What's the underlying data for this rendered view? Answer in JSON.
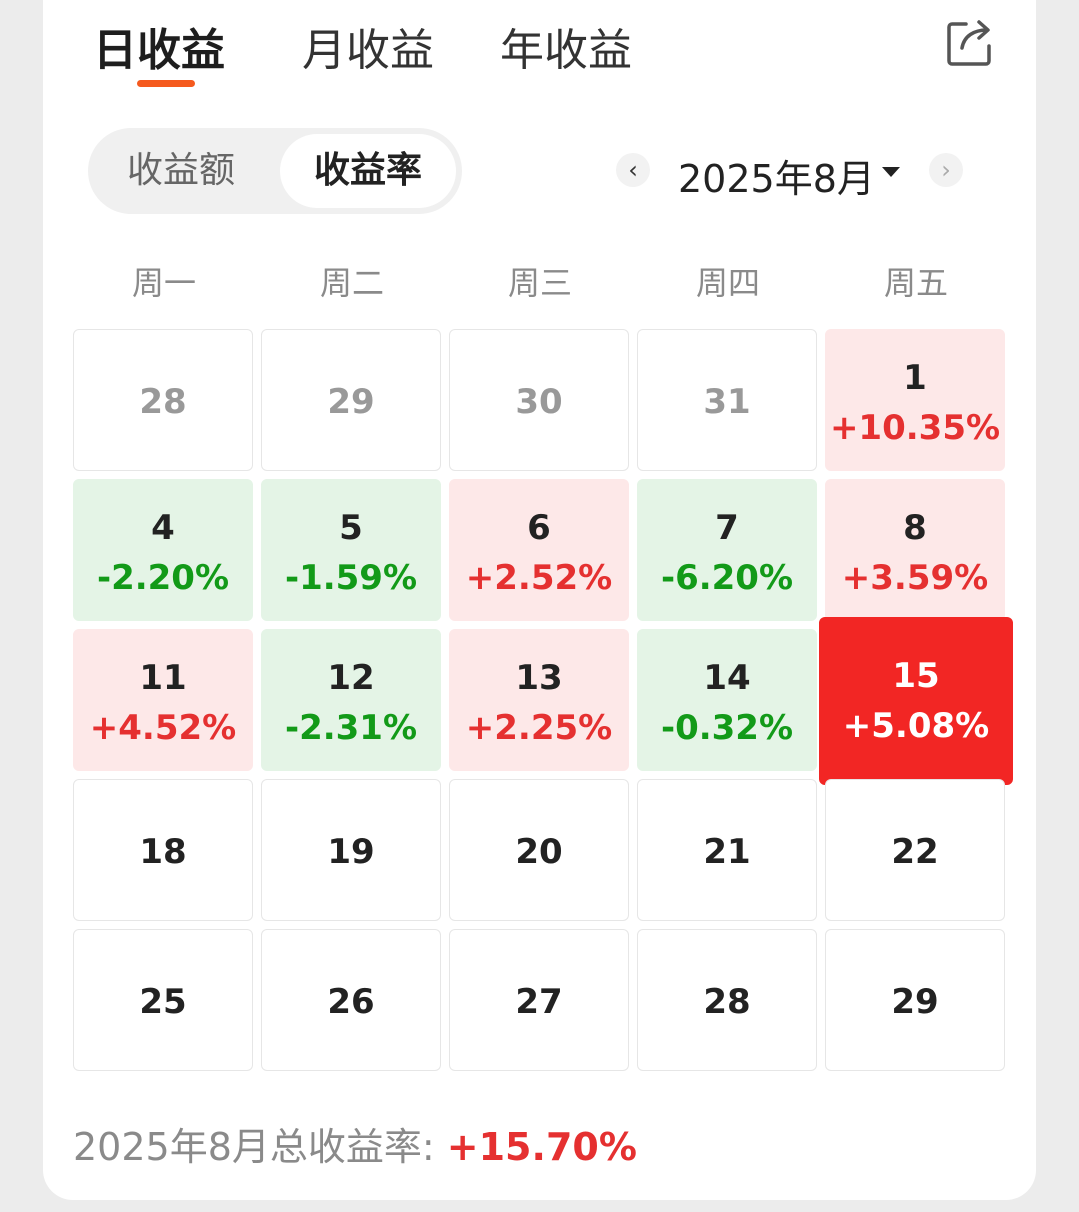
{
  "tabs": [
    {
      "label": "日收益",
      "active": true
    },
    {
      "label": "月收益",
      "active": false
    },
    {
      "label": "年收益",
      "active": false
    }
  ],
  "segment": {
    "options": [
      "收益额",
      "收益率"
    ],
    "selected": "收益率"
  },
  "month_nav": {
    "label": "2025年8月"
  },
  "weekdays": [
    "周一",
    "周二",
    "周三",
    "周四",
    "周五"
  ],
  "colors": {
    "up": "#e53030",
    "down": "#129a18",
    "highlight": "#f22624",
    "accent": "#f55a1e"
  },
  "calendar": [
    {
      "day": "28",
      "pct": "",
      "state": "outside"
    },
    {
      "day": "29",
      "pct": "",
      "state": "outside"
    },
    {
      "day": "30",
      "pct": "",
      "state": "outside"
    },
    {
      "day": "31",
      "pct": "",
      "state": "outside"
    },
    {
      "day": "1",
      "pct": "+10.35%",
      "state": "up"
    },
    {
      "day": "4",
      "pct": "-2.20%",
      "state": "down"
    },
    {
      "day": "5",
      "pct": "-1.59%",
      "state": "down"
    },
    {
      "day": "6",
      "pct": "+2.52%",
      "state": "up"
    },
    {
      "day": "7",
      "pct": "-6.20%",
      "state": "down"
    },
    {
      "day": "8",
      "pct": "+3.59%",
      "state": "up"
    },
    {
      "day": "11",
      "pct": "+4.52%",
      "state": "up"
    },
    {
      "day": "12",
      "pct": "-2.31%",
      "state": "down"
    },
    {
      "day": "13",
      "pct": "+2.25%",
      "state": "up"
    },
    {
      "day": "14",
      "pct": "-0.32%",
      "state": "down"
    },
    {
      "day": "15",
      "pct": "+5.08%",
      "state": "selected"
    },
    {
      "day": "18",
      "pct": "",
      "state": "future"
    },
    {
      "day": "19",
      "pct": "",
      "state": "future"
    },
    {
      "day": "20",
      "pct": "",
      "state": "future"
    },
    {
      "day": "21",
      "pct": "",
      "state": "future"
    },
    {
      "day": "22",
      "pct": "",
      "state": "future"
    },
    {
      "day": "25",
      "pct": "",
      "state": "future"
    },
    {
      "day": "26",
      "pct": "",
      "state": "future"
    },
    {
      "day": "27",
      "pct": "",
      "state": "future"
    },
    {
      "day": "28",
      "pct": "",
      "state": "future"
    },
    {
      "day": "29",
      "pct": "",
      "state": "future"
    }
  ],
  "summary": {
    "label": "2025年8月总收益率: ",
    "value": "+15.70%"
  }
}
